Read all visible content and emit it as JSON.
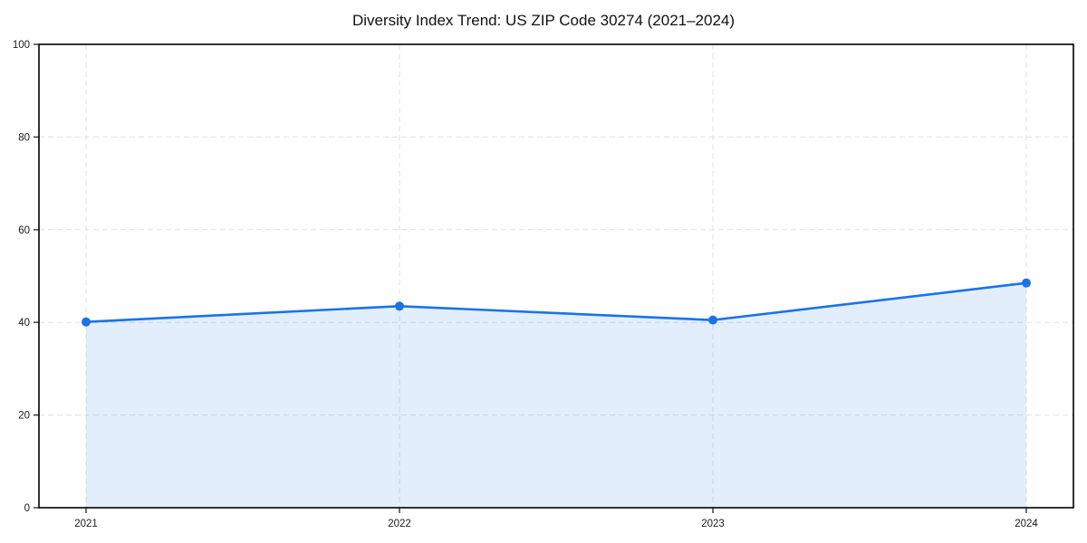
{
  "chart_data": {
    "type": "area",
    "title": "Diversity Index Trend: US ZIP Code 30274 (2021–2024)",
    "categories": [
      "2021",
      "2022",
      "2023",
      "2024"
    ],
    "values": [
      40.1,
      43.5,
      40.5,
      48.5
    ],
    "series_name": "Diversity Index",
    "xlabel": "",
    "ylabel": "",
    "ylim": [
      0,
      100
    ],
    "yticks": [
      0,
      20,
      40,
      60,
      80,
      100
    ],
    "grid": true,
    "grid_style": "dashed",
    "legend": "none",
    "line_color": "#1a73e8",
    "marker_color": "#1a73e8",
    "fill_color": "#1a73e8",
    "fill_opacity": 0.12,
    "background_color": "#ffffff"
  }
}
